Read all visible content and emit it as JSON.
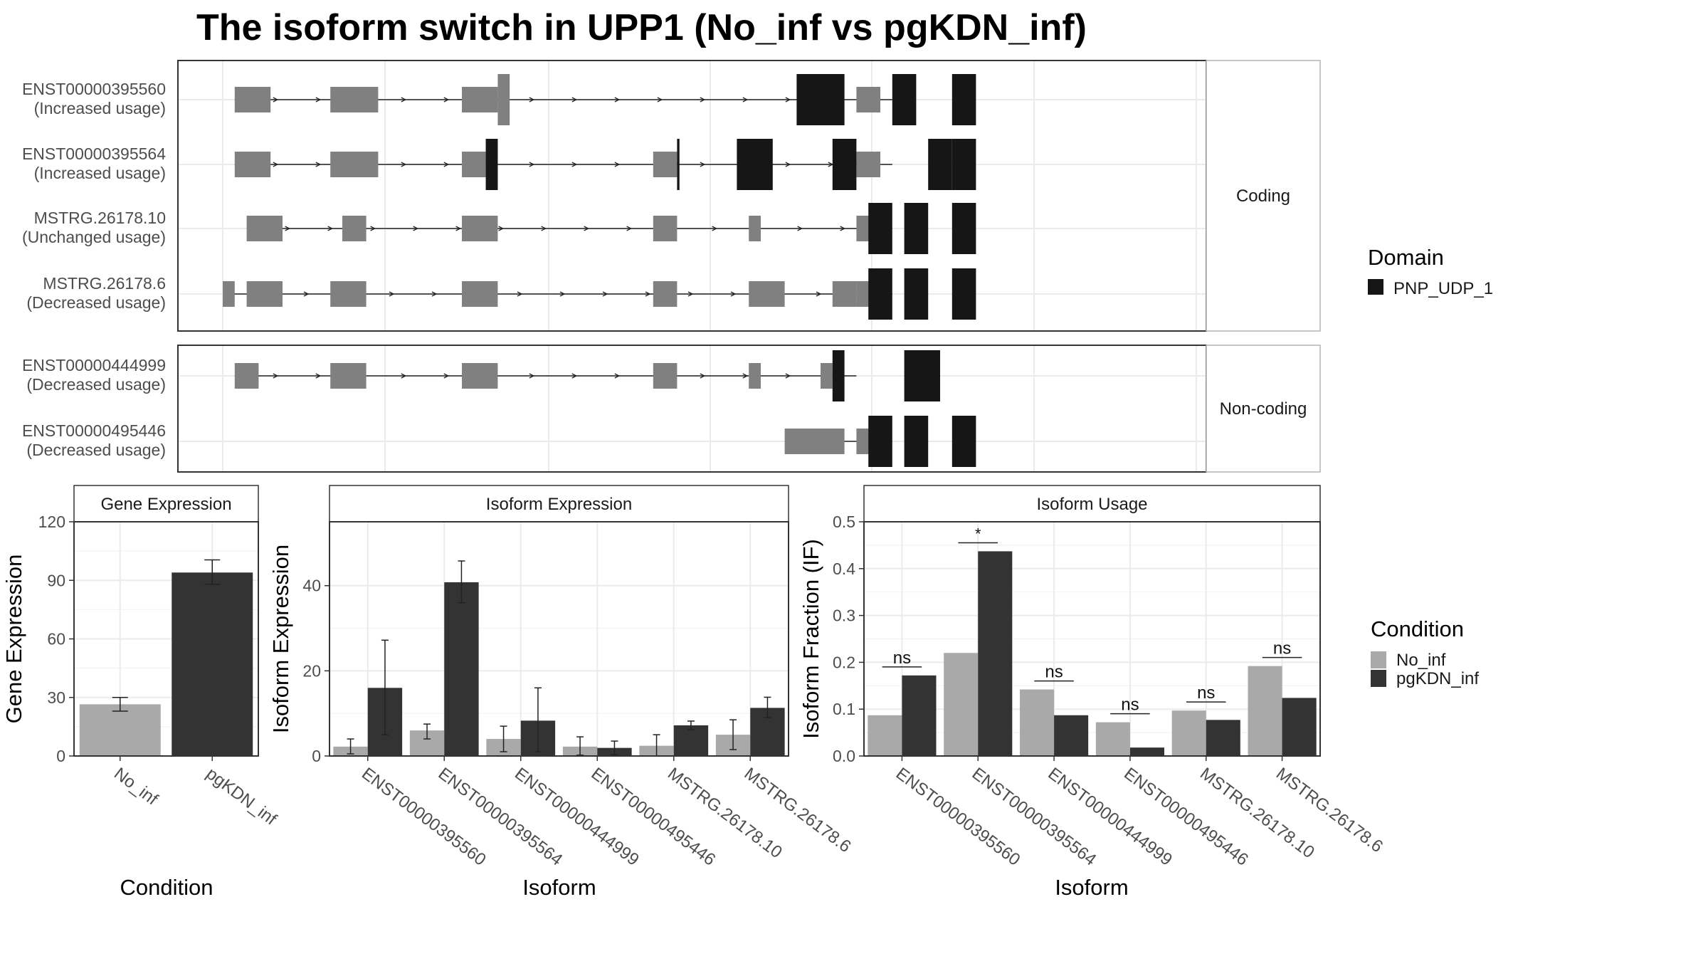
{
  "title": "The isoform switch in UPP1 (No_inf vs pgKDN_inf)",
  "colors": {
    "utr": "#808080",
    "domain": "#161616",
    "no_inf": "#a9a9a9",
    "pgkdn_inf": "#333333",
    "grid": "#ebebeb",
    "panel_border": "#333333",
    "strip_bg": "#ffffff"
  },
  "structure": {
    "facets": [
      {
        "label": "Coding",
        "transcripts": [
          {
            "id": "ENST00000395560",
            "status": "(Increased usage)",
            "utr": [
              [
                1,
                4
              ],
              [
                9,
                13
              ],
              [
                20,
                23
              ],
              [
                53,
                55
              ]
            ],
            "domain": [
              [
                48,
                52
              ],
              [
                56,
                58
              ],
              [
                61,
                63
              ]
            ],
            "tall": [
              [
                23,
                24
              ]
            ],
            "line": [
              1,
              56
            ]
          },
          {
            "id": "ENST00000395564",
            "status": "(Increased usage)",
            "utr": [
              [
                1,
                4
              ],
              [
                9,
                13
              ],
              [
                20,
                22
              ],
              [
                36,
                38
              ],
              [
                53,
                55
              ]
            ],
            "domain": [
              [
                22,
                23
              ],
              [
                38,
                38.2
              ],
              [
                43,
                46
              ],
              [
                51,
                53
              ],
              [
                59,
                61
              ],
              [
                61,
                63
              ]
            ],
            "tall": [
              [
                22,
                23
              ]
            ],
            "line": [
              1,
              56
            ]
          },
          {
            "id": "MSTRG.26178.10",
            "status": "(Unchanged usage)",
            "utr": [
              [
                2,
                5
              ],
              [
                10,
                12
              ],
              [
                20,
                23
              ],
              [
                36,
                38
              ],
              [
                44,
                45
              ],
              [
                53,
                55
              ]
            ],
            "domain": [
              [
                54,
                56
              ],
              [
                57,
                59
              ],
              [
                61,
                63
              ]
            ],
            "tall": [],
            "line": [
              2,
              56
            ]
          },
          {
            "id": "MSTRG.26178.6",
            "status": "(Decreased usage)",
            "utr": [
              [
                0,
                1
              ],
              [
                2,
                5
              ],
              [
                9,
                12
              ],
              [
                20,
                23
              ],
              [
                36,
                38
              ],
              [
                44,
                47
              ],
              [
                51,
                53
              ],
              [
                53,
                55
              ]
            ],
            "domain": [
              [
                54,
                56
              ],
              [
                57,
                59
              ],
              [
                61,
                63
              ]
            ],
            "tall": [],
            "line": [
              0,
              56
            ]
          }
        ]
      },
      {
        "label": "Non-coding",
        "transcripts": [
          {
            "id": "ENST00000444999",
            "status": "(Decreased usage)",
            "utr": [
              [
                1,
                3
              ],
              [
                9,
                12
              ],
              [
                20,
                23
              ],
              [
                36,
                38
              ],
              [
                44,
                45
              ],
              [
                50,
                51
              ]
            ],
            "domain": [
              [
                51,
                52
              ],
              [
                57,
                60
              ]
            ],
            "tall": [],
            "line": [
              1,
              53
            ]
          },
          {
            "id": "ENST00000495446",
            "status": "(Decreased usage)",
            "utr": [
              [
                47,
                52
              ],
              [
                53,
                55
              ]
            ],
            "domain": [
              [
                54,
                56
              ],
              [
                57,
                59
              ],
              [
                61,
                63
              ]
            ],
            "tall": [],
            "line": [
              47,
              56
            ]
          }
        ]
      }
    ]
  },
  "legend_domain": {
    "title": "Domain",
    "items": [
      "PNP_UDP_1"
    ]
  },
  "legend_condition": {
    "title": "Condition",
    "items": [
      "No_inf",
      "pgKDN_inf"
    ]
  },
  "chart_data": [
    {
      "type": "bar",
      "title": "Gene Expression",
      "xlabel": "Condition",
      "ylabel": "Gene Expression",
      "ylim": [
        0,
        120
      ],
      "yticks": [
        0,
        30,
        60,
        90,
        120
      ],
      "categories": [
        "No_inf",
        "pgKDN_inf"
      ],
      "values": [
        26.5,
        94
      ],
      "error_low": [
        23,
        88
      ],
      "error_high": [
        30,
        100.5
      ]
    },
    {
      "type": "bar",
      "title": "Isoform Expression",
      "xlabel": "Isoform",
      "ylabel": "Isoform Expression",
      "ylim": [
        0,
        55
      ],
      "yticks": [
        0,
        20,
        40
      ],
      "categories": [
        "ENST00000395560",
        "ENST00000395564",
        "ENST00000444999",
        "ENST00000495446",
        "MSTRG.26178.10",
        "MSTRG.26178.6"
      ],
      "series": [
        {
          "name": "No_inf",
          "values": [
            2.2,
            6,
            4,
            2.2,
            2.4,
            5
          ],
          "error_low": [
            0.5,
            4,
            1,
            0.2,
            0,
            1.5
          ],
          "error_high": [
            4,
            7.5,
            7,
            4.5,
            5,
            8.5
          ]
        },
        {
          "name": "pgKDN_inf",
          "values": [
            16,
            40.8,
            8.3,
            1.9,
            7.2,
            11.3
          ],
          "error_low": [
            5,
            36,
            1,
            0.3,
            6.2,
            9
          ],
          "error_high": [
            27.2,
            45.8,
            16,
            3.5,
            8.2,
            13.8
          ]
        }
      ]
    },
    {
      "type": "bar",
      "title": "Isoform Usage",
      "xlabel": "Isoform",
      "ylabel": "Isoform Fraction (IF)",
      "ylim": [
        0,
        0.5
      ],
      "yticks": [
        0,
        0.1,
        0.2,
        0.3,
        0.4,
        0.5
      ],
      "ytick_labels": [
        "0.0",
        "0.1",
        "0.2",
        "0.3",
        "0.4",
        "0.5"
      ],
      "categories": [
        "ENST00000395560",
        "ENST00000395564",
        "ENST00000444999",
        "ENST00000495446",
        "MSTRG.26178.10",
        "MSTRG.26178.6"
      ],
      "series": [
        {
          "name": "No_inf",
          "values": [
            0.087,
            0.22,
            0.142,
            0.072,
            0.097,
            0.192
          ]
        },
        {
          "name": "pgKDN_inf",
          "values": [
            0.172,
            0.437,
            0.087,
            0.018,
            0.077,
            0.124
          ]
        }
      ],
      "significance": [
        "ns",
        "*",
        "ns",
        "ns",
        "ns",
        "ns"
      ]
    }
  ]
}
